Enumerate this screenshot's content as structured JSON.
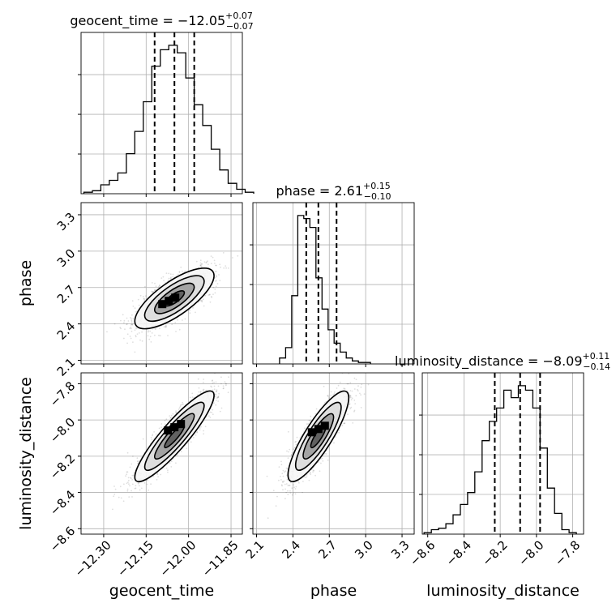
{
  "chart_data": {
    "type": "corner",
    "parameters": [
      {
        "name": "geocent_time",
        "title": "geocent_time = −12.05",
        "title_plus": "+0.07",
        "title_minus": "−0.07",
        "median": -12.05,
        "q16": -12.12,
        "q84": -11.98,
        "range": [
          -12.38,
          -11.81
        ],
        "ticks": [
          -12.3,
          -12.15,
          -12.0,
          -11.85
        ],
        "tick_labels": [
          "−12.30",
          "−12.15",
          "−12.00",
          "−11.85"
        ],
        "hist_edges_start": -12.37,
        "hist_bin_width": 0.03,
        "hist_counts": [
          0.01,
          0.02,
          0.06,
          0.09,
          0.14,
          0.27,
          0.42,
          0.62,
          0.86,
          0.97,
          1.0,
          0.95,
          0.78,
          0.6,
          0.46,
          0.3,
          0.16,
          0.07,
          0.03,
          0.01
        ]
      },
      {
        "name": "phase",
        "title": "phase = 2.61",
        "title_plus": "+0.15",
        "title_minus": "−0.10",
        "median": 2.61,
        "q16": 2.51,
        "q84": 2.76,
        "range": [
          2.07,
          3.4
        ],
        "ticks": [
          2.1,
          2.4,
          2.7,
          3.0,
          3.3
        ],
        "tick_labels": [
          "2.1",
          "2.4",
          "2.7",
          "3.0",
          "3.3"
        ],
        "hist_edges_start": 2.29,
        "hist_bin_width": 0.05,
        "hist_counts": [
          0.04,
          0.11,
          0.46,
          1.0,
          0.98,
          0.92,
          0.58,
          0.37,
          0.23,
          0.14,
          0.08,
          0.04,
          0.02,
          0.01,
          0.01
        ]
      },
      {
        "name": "luminosity_distance",
        "title": "luminosity_distance = −8.09",
        "title_plus": "+0.11",
        "title_minus": "−0.14",
        "median": -8.09,
        "q16": -8.23,
        "q84": -7.98,
        "range": [
          -8.63,
          -7.74
        ],
        "ticks": [
          -8.6,
          -8.4,
          -8.2,
          -8.0,
          -7.8
        ],
        "tick_labels": [
          "−8.6",
          "−8.4",
          "−8.2",
          "−8.0",
          "−7.8"
        ],
        "hist_edges_start": -8.62,
        "hist_bin_width": 0.04,
        "hist_counts": [
          0.01,
          0.03,
          0.04,
          0.07,
          0.13,
          0.2,
          0.28,
          0.42,
          0.63,
          0.76,
          0.85,
          0.97,
          0.92,
          1.0,
          0.97,
          0.85,
          0.58,
          0.31,
          0.14,
          0.03,
          0.01
        ]
      }
    ],
    "pairs": [
      {
        "x": "geocent_time",
        "y": "phase",
        "correlation": 0.75,
        "peak": [
          -12.07,
          2.59
        ]
      },
      {
        "x": "geocent_time",
        "y": "luminosity_distance",
        "correlation": 0.9,
        "peak": [
          -12.05,
          -8.04
        ]
      },
      {
        "x": "phase",
        "y": "luminosity_distance",
        "correlation": 0.85,
        "peak": [
          2.61,
          -8.05
        ]
      }
    ],
    "quantile_lines": [
      0.16,
      0.5,
      0.84
    ],
    "grid": true
  }
}
